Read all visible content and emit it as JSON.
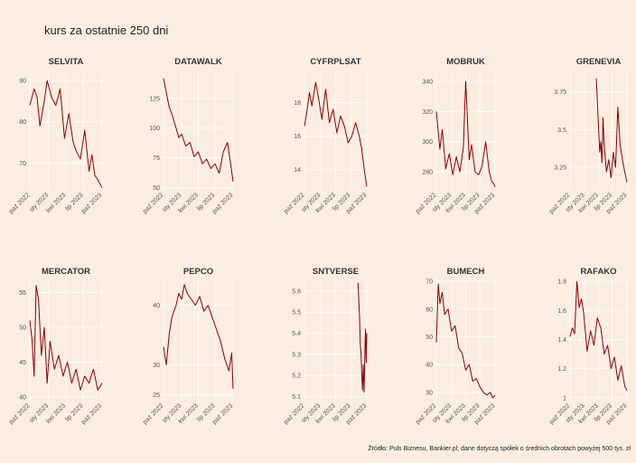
{
  "title": "kurs za ostatnie 250 dni",
  "source": "Źródło: Puls Biznesu, Bankier.pl; dane dotyczą spółek o średnich obrotach powyżej 500 tys. zł",
  "chart_data": [
    {
      "type": "line",
      "title": "SELVITA",
      "yticks": [
        70,
        80,
        90
      ],
      "ylim": [
        63.5,
        92
      ],
      "xticks": [
        "paź 2022",
        "sty 2023",
        "kwi 2023",
        "lip 2023",
        "paź 2023"
      ],
      "color": "#8b0000",
      "x": [
        0,
        15,
        25,
        35,
        50,
        60,
        75,
        90,
        105,
        120,
        135,
        150,
        160,
        175,
        190,
        205,
        215,
        225,
        235,
        250
      ],
      "y": [
        84,
        88,
        86,
        79,
        85,
        90,
        86,
        84,
        88,
        76,
        82,
        75,
        73,
        71,
        78,
        68,
        72,
        67,
        66,
        64
      ]
    },
    {
      "type": "line",
      "title": "DATAWALK",
      "yticks": [
        50,
        75,
        100,
        125
      ],
      "ylim": [
        48,
        147
      ],
      "xticks": [
        "paź 2022",
        "sty 2023",
        "kwi 2023",
        "lip 2023",
        "paź 2023"
      ],
      "color": "#8b0000",
      "x": [
        0,
        10,
        20,
        30,
        45,
        55,
        65,
        80,
        95,
        110,
        125,
        140,
        155,
        170,
        185,
        200,
        215,
        230,
        240,
        250
      ],
      "y": [
        142,
        130,
        118,
        112,
        100,
        92,
        95,
        85,
        88,
        76,
        80,
        70,
        74,
        66,
        70,
        62,
        80,
        88,
        72,
        55
      ]
    },
    {
      "type": "line",
      "title": "CYFRPLSAT",
      "yticks": [
        14,
        16,
        18
      ],
      "ylim": [
        12.8,
        19.8
      ],
      "xticks": [
        "paź 2022",
        "sty 2023",
        "kwi 2023",
        "lip 2023",
        "paź 2023"
      ],
      "color": "#8b0000",
      "x": [
        0,
        10,
        20,
        30,
        45,
        55,
        70,
        85,
        100,
        115,
        130,
        145,
        160,
        175,
        190,
        205,
        220,
        230,
        240,
        250
      ],
      "y": [
        16.6,
        17.5,
        18.6,
        17.8,
        19.2,
        18.4,
        17.0,
        18.8,
        16.8,
        17.6,
        16.2,
        17.2,
        16.6,
        15.6,
        16.0,
        16.8,
        16.0,
        15.2,
        14.0,
        13.0
      ]
    },
    {
      "type": "line",
      "title": "MOBRUK",
      "yticks": [
        280,
        300,
        320,
        340
      ],
      "ylim": [
        268,
        346
      ],
      "xticks": [
        "paź 2022",
        "sty 2023",
        "kwi 2023",
        "lip 2023",
        "paź 2023"
      ],
      "color": "#8b0000",
      "x": [
        0,
        15,
        25,
        40,
        55,
        70,
        85,
        100,
        115,
        125,
        140,
        150,
        165,
        180,
        195,
        210,
        225,
        235,
        245,
        250
      ],
      "y": [
        320,
        295,
        308,
        282,
        292,
        278,
        290,
        280,
        296,
        340,
        288,
        298,
        280,
        278,
        284,
        300,
        280,
        274,
        272,
        270
      ]
    },
    {
      "type": "line",
      "title": "GRENEVIA",
      "yticks": [
        3.25,
        3.5,
        3.75
      ],
      "ylim": [
        3.1,
        3.88
      ],
      "xticks": [
        "paź 2022",
        "sty 2023",
        "kwi 2023",
        "lip 2023",
        "paź 2023"
      ],
      "color": "#8b0000",
      "x": [
        115,
        120,
        125,
        130,
        135,
        140,
        145,
        150,
        160,
        170,
        180,
        190,
        200,
        210,
        220,
        230,
        240,
        250
      ],
      "y": [
        3.84,
        3.7,
        3.52,
        3.35,
        3.42,
        3.28,
        3.58,
        3.4,
        3.22,
        3.3,
        3.18,
        3.35,
        3.25,
        3.65,
        3.4,
        3.3,
        3.22,
        3.15
      ]
    },
    {
      "type": "line",
      "title": "MERCATOR",
      "yticks": [
        40,
        45,
        50,
        55
      ],
      "ylim": [
        39.5,
        57
      ],
      "xticks": [
        "paź 2022",
        "sty 2023",
        "kwi 2023",
        "lip 2023",
        "paź 2023"
      ],
      "color": "#8b0000",
      "x": [
        0,
        8,
        15,
        22,
        30,
        40,
        50,
        60,
        70,
        85,
        100,
        115,
        130,
        145,
        160,
        175,
        190,
        205,
        220,
        235,
        250
      ],
      "y": [
        51,
        48,
        43,
        56,
        54,
        46,
        50,
        42,
        48,
        44,
        46,
        43,
        45,
        42,
        44,
        41,
        43,
        42,
        44,
        41,
        42
      ]
    },
    {
      "type": "line",
      "title": "PEPCO",
      "yticks": [
        25,
        30,
        40
      ],
      "ylim": [
        24,
        44.5
      ],
      "xticks": [
        "paź 2022",
        "sty 2023",
        "kwi 2023",
        "lip 2023",
        "paź 2023"
      ],
      "color": "#8b0000",
      "x": [
        0,
        10,
        20,
        30,
        45,
        55,
        65,
        75,
        85,
        100,
        115,
        130,
        145,
        160,
        175,
        190,
        205,
        220,
        235,
        245,
        250
      ],
      "y": [
        33,
        30,
        35,
        38,
        40,
        42,
        41,
        43.5,
        42,
        41,
        40,
        41.5,
        39,
        40,
        38,
        36,
        34,
        31,
        29,
        32,
        26
      ]
    },
    {
      "type": "line",
      "title": "SNTVERSE",
      "yticks": [
        5.1,
        5.2,
        5.3,
        5.4,
        5.5,
        5.6
      ],
      "ylim": [
        5.08,
        5.66
      ],
      "xticks": [
        "paź 2022",
        "sty 2023",
        "kwi 2023",
        "lip 2023",
        "paź 2023"
      ],
      "color": "#8b0000",
      "x": [
        215,
        218,
        221,
        224,
        227,
        230,
        233,
        236,
        239,
        242,
        245,
        248,
        250
      ],
      "y": [
        5.64,
        5.55,
        5.48,
        5.35,
        5.3,
        5.2,
        5.13,
        5.25,
        5.12,
        5.3,
        5.42,
        5.26,
        5.4
      ]
    },
    {
      "type": "line",
      "title": "BUMECH",
      "yticks": [
        30,
        40,
        50,
        60,
        70
      ],
      "ylim": [
        27,
        71
      ],
      "xticks": [
        "paź 2022",
        "sty 2023",
        "kwi 2023",
        "lip 2023",
        "paź 2023"
      ],
      "color": "#8b0000",
      "x": [
        0,
        8,
        15,
        25,
        35,
        50,
        65,
        80,
        95,
        110,
        125,
        140,
        155,
        170,
        185,
        200,
        215,
        230,
        240,
        250
      ],
      "y": [
        48,
        69,
        62,
        66,
        58,
        60,
        52,
        54,
        46,
        44,
        38,
        40,
        34,
        35,
        32,
        30,
        29,
        30,
        28,
        29
      ]
    },
    {
      "type": "line",
      "title": "RAFAKO",
      "yticks": [
        1.0,
        1.2,
        1.4,
        1.6,
        1.8
      ],
      "ylim": [
        0.98,
        1.82
      ],
      "xticks": [
        "paź 2022",
        "sty 2023",
        "kwi 2023",
        "lip 2023",
        "paź 2023"
      ],
      "color": "#8b0000",
      "x": [
        0,
        10,
        20,
        30,
        40,
        50,
        60,
        75,
        90,
        105,
        120,
        135,
        150,
        165,
        180,
        195,
        210,
        225,
        240,
        250
      ],
      "y": [
        1.42,
        1.48,
        1.44,
        1.8,
        1.62,
        1.68,
        1.58,
        1.32,
        1.46,
        1.36,
        1.55,
        1.48,
        1.3,
        1.36,
        1.2,
        1.28,
        1.12,
        1.22,
        1.08,
        1.05
      ]
    }
  ]
}
